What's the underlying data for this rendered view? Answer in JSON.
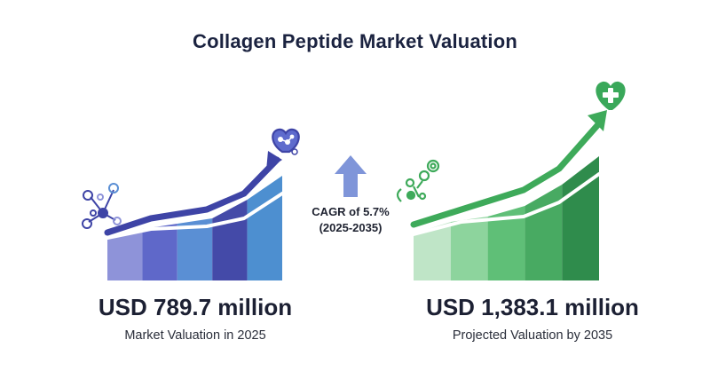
{
  "title": "Collagen Peptide Market Valuation",
  "cagr": {
    "line1": "CAGR of 5.7%",
    "line2": "(2025-2035)"
  },
  "chart_data": [
    {
      "type": "bar",
      "value_label": "USD 789.7 million",
      "caption": "Market Valuation in 2025",
      "value": 789.7,
      "unit": "USD million",
      "year": 2025,
      "colors": [
        "#8e93d9",
        "#5f68c9",
        "#5a8fd4",
        "#444aa8",
        "#4d8fd0"
      ],
      "arrow_color": "#3e44a6"
    },
    {
      "type": "bar",
      "value_label": "USD 1,383.1 million",
      "caption": "Projected Valuation by 2035",
      "value": 1383.1,
      "unit": "USD million",
      "year": 2035,
      "colors": [
        "#bfe5c7",
        "#8dd49d",
        "#5fbf77",
        "#48aa62",
        "#2f8c4c"
      ],
      "arrow_color": "#3eaa5a"
    }
  ],
  "icons": {
    "left_badge": "heart-molecule-icon",
    "right_badge": "heart-plus-icon",
    "left_molecule": "molecule-icon",
    "right_molecule": "peptide-chain-icon",
    "growth_arrow": "up-arrow-icon"
  }
}
